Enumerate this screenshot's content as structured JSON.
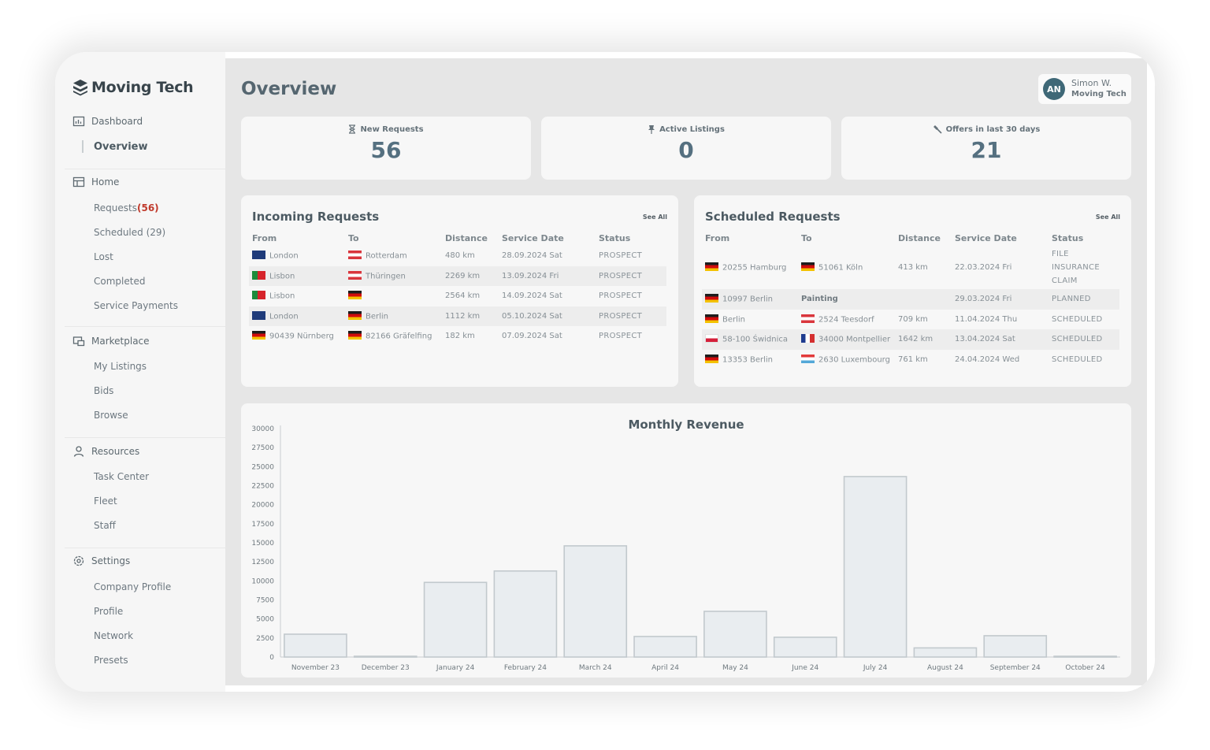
{
  "app": {
    "name": "Moving Tech"
  },
  "sidebar": {
    "sections": [
      {
        "label": "Dashboard",
        "items": [
          "Overview"
        ]
      },
      {
        "label": "Home",
        "items": [
          "Requests",
          "Scheduled (29)",
          "Lost",
          "Completed",
          "Service Payments"
        ]
      },
      {
        "label": "Marketplace",
        "items": [
          "My Listings",
          "Bids",
          "Browse"
        ]
      },
      {
        "label": "Resources",
        "items": [
          "Task Center",
          "Fleet",
          "Staff"
        ]
      },
      {
        "label": "Settings",
        "items": [
          "Company Profile",
          "Profile",
          "Network",
          "Presets"
        ]
      }
    ],
    "requests_badge": "(56)"
  },
  "header": {
    "title": "Overview",
    "user": {
      "initials": "AN",
      "name": "Simon W.",
      "company": "Moving Tech"
    }
  },
  "stats": [
    {
      "label": "New Requests",
      "value": "56",
      "icon": "hourglass-icon"
    },
    {
      "label": "Active Listings",
      "value": "0",
      "icon": "pin-icon"
    },
    {
      "label": "Offers in last 30 days",
      "value": "21",
      "icon": "hammer-icon"
    }
  ],
  "incoming": {
    "title": "Incoming Requests",
    "see_all": "See All",
    "columns": [
      "From",
      "To",
      "Distance",
      "Service Date",
      "Status"
    ],
    "rows": [
      {
        "from_flag": "gb",
        "from": "London",
        "to_flag": "at",
        "to": "Rotterdam",
        "distance": "480 km",
        "date": "28.09.2024 Sat",
        "status": "PROSPECT"
      },
      {
        "from_flag": "pt",
        "from": "Lisbon",
        "to_flag": "at",
        "to": "Thüringen",
        "distance": "2269 km",
        "date": "13.09.2024 Fri",
        "status": "PROSPECT"
      },
      {
        "from_flag": "pt",
        "from": "Lisbon",
        "to_flag": "de",
        "to": "",
        "distance": "2564 km",
        "date": "14.09.2024 Sat",
        "status": "PROSPECT"
      },
      {
        "from_flag": "gb",
        "from": "London",
        "to_flag": "de",
        "to": "Berlin",
        "distance": "1112 km",
        "date": "05.10.2024 Sat",
        "status": "PROSPECT"
      },
      {
        "from_flag": "de",
        "from": "90439 Nürnberg",
        "to_flag": "de",
        "to": "82166 Gräfelfing",
        "distance": "182 km",
        "date": "07.09.2024 Sat",
        "status": "PROSPECT"
      }
    ]
  },
  "scheduled": {
    "title": "Scheduled Requests",
    "see_all": "See All",
    "columns": [
      "From",
      "To",
      "Distance",
      "Service Date",
      "Status"
    ],
    "rows": [
      {
        "from_flag": "de",
        "from": "20255 Hamburg",
        "to_flag": "de",
        "to": "51061 Köln",
        "distance": "413 km",
        "date": "22.03.2024 Fri",
        "status": "FILE INSURANCE CLAIM",
        "to_bold": false
      },
      {
        "from_flag": "de",
        "from": "10997 Berlin",
        "to_flag": "",
        "to": "Painting",
        "distance": "",
        "date": "29.03.2024 Fri",
        "status": "PLANNED",
        "to_bold": true
      },
      {
        "from_flag": "de",
        "from": "Berlin",
        "to_flag": "at",
        "to": "2524 Teesdorf",
        "distance": "709 km",
        "date": "11.04.2024 Thu",
        "status": "SCHEDULED",
        "to_bold": false
      },
      {
        "from_flag": "pl",
        "from": "58-100 Świdnica",
        "to_flag": "fr",
        "to": "34000 Montpellier",
        "distance": "1642 km",
        "date": "13.04.2024 Sat",
        "status": "SCHEDULED",
        "to_bold": false
      },
      {
        "from_flag": "de",
        "from": "13353 Berlin",
        "to_flag": "lu",
        "to": "2630 Luxembourg",
        "distance": "761 km",
        "date": "24.04.2024 Wed",
        "status": "SCHEDULED",
        "to_bold": false
      }
    ]
  },
  "chart_data": {
    "type": "bar",
    "title": "Monthly Revenue",
    "xlabel": "",
    "ylabel": "",
    "categories": [
      "November 23",
      "December 23",
      "January 24",
      "February 24",
      "March 24",
      "April 24",
      "May 24",
      "June 24",
      "July 24",
      "August 24",
      "September 24",
      "October 24"
    ],
    "values": [
      3000,
      100,
      9800,
      11300,
      14600,
      2700,
      6000,
      2600,
      23700,
      1200,
      2800,
      100
    ],
    "ylim": [
      0,
      30000
    ],
    "yticks": [
      0,
      2500,
      5000,
      7500,
      10000,
      12500,
      15000,
      17500,
      20000,
      22500,
      25000,
      27500,
      30000
    ],
    "grid": false,
    "bar_color": "#e9edf0",
    "bar_stroke": "#c2c9cd"
  }
}
